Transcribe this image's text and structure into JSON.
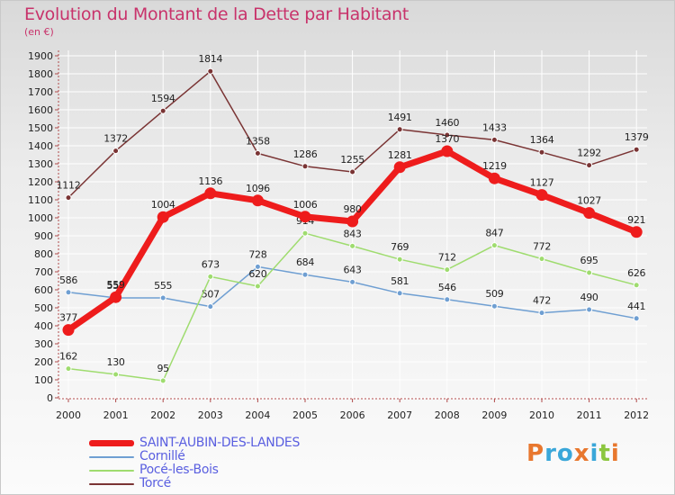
{
  "header": {
    "title": "Evolution du Montant de la Dette par Habitant",
    "subtitle": "(en €)"
  },
  "logo": {
    "text": "Proxiti",
    "colors": [
      "#e8772e",
      "#3aa7d9",
      "#3aa7d9",
      "#e8772e",
      "#3aa7d9",
      "#8cc63f",
      "#e8772e"
    ]
  },
  "colors": {
    "title": "#c8336b",
    "legend_text": "#5a5fe0",
    "axis": "#b04a4a",
    "grid": "#ffffff"
  },
  "chart_data": {
    "type": "line",
    "title": "Evolution du Montant de la Dette par Habitant",
    "ylabel": "(en €)",
    "x": [
      "2000",
      "2001",
      "2002",
      "2003",
      "2004",
      "2005",
      "2006",
      "2007",
      "2008",
      "2009",
      "2010",
      "2011",
      "2012"
    ],
    "ylim": [
      0,
      1900
    ],
    "yticks": [
      0,
      100,
      200,
      300,
      400,
      500,
      600,
      700,
      800,
      900,
      1000,
      1100,
      1200,
      1300,
      1400,
      1500,
      1600,
      1700,
      1800,
      1900
    ],
    "grid": true,
    "legend_position": "bottom-left",
    "series": [
      {
        "name": "SAINT-AUBIN-DES-LANDES",
        "color": "#ee1c1c",
        "emphasis": true,
        "values": [
          377,
          559,
          1004,
          1136,
          1096,
          1006,
          980,
          1281,
          1370,
          1219,
          1127,
          1027,
          921
        ],
        "labels": [
          "377",
          "559",
          "1004",
          "1136",
          "1096",
          "1006",
          "980",
          "1281",
          "1370",
          "1219",
          "1127",
          "1027",
          "921"
        ]
      },
      {
        "name": "Cornillé",
        "color": "#6f9fd2",
        "values": [
          586,
          555,
          555,
          507,
          728,
          684,
          643,
          581,
          546,
          509,
          472,
          490,
          441
        ],
        "labels": [
          "586",
          "555",
          "555",
          "507",
          "728",
          "684",
          "643",
          "581",
          "546",
          "509",
          "472",
          "490",
          "441"
        ]
      },
      {
        "name": "Pocé-les-Bois",
        "color": "#9fdc6f",
        "values": [
          162,
          130,
          95,
          673,
          620,
          914,
          843,
          769,
          712,
          847,
          772,
          695,
          626
        ],
        "labels": [
          "162",
          "130",
          "95",
          "673",
          "620",
          "914",
          "843",
          "769",
          "712",
          "847",
          "772",
          "695",
          "626"
        ]
      },
      {
        "name": "Torcé",
        "color": "#7a3434",
        "values": [
          1112,
          1372,
          1594,
          1814,
          1358,
          1286,
          1255,
          1491,
          1460,
          1433,
          1364,
          1292,
          1379
        ],
        "labels": [
          "1112",
          "1372",
          "1594",
          "1814",
          "1358",
          "1286",
          "1255",
          "1491",
          "1460",
          "1433",
          "1364",
          "1292",
          "1379"
        ]
      }
    ]
  }
}
